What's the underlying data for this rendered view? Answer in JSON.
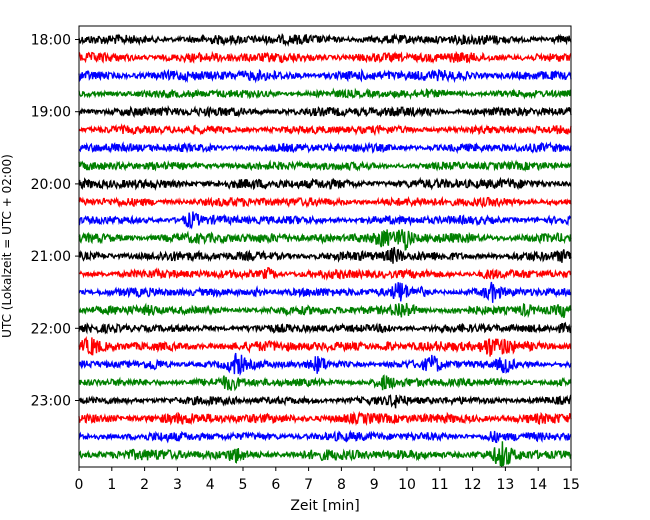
{
  "chart_data": {
    "type": "line",
    "title": "",
    "xlabel": "Zeit  [min]",
    "ylabel": "UTC (Lokalzeit = UTC + 02:00)",
    "xlim": [
      0,
      15
    ],
    "x_ticks": [
      "0",
      "1",
      "2",
      "3",
      "4",
      "5",
      "6",
      "7",
      "8",
      "9",
      "10",
      "11",
      "12",
      "13",
      "14",
      "15"
    ],
    "y_ticks": [
      "18:00",
      "19:00",
      "20:00",
      "21:00",
      "22:00",
      "23:00"
    ],
    "trace_interval_minutes": 15,
    "first_trace": "18:00",
    "last_trace": "23:45",
    "trace_colors": [
      "#000000",
      "#ff0000",
      "#0000ff",
      "#008000"
    ],
    "grid": false,
    "legend": "none"
  }
}
